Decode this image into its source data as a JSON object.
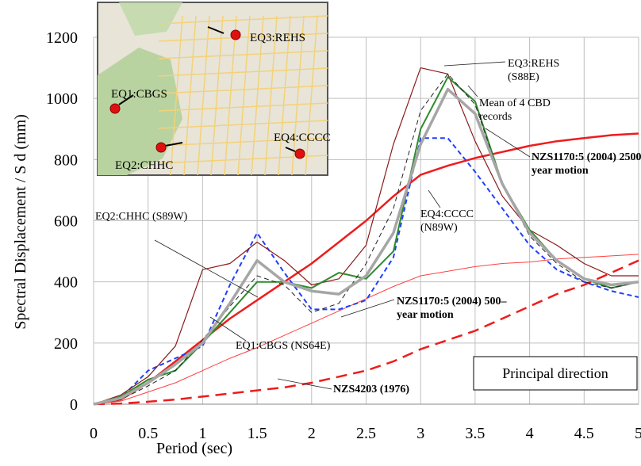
{
  "chart_data": {
    "type": "line",
    "xlabel": "Period (sec)",
    "ylabel": "Spectral Displacement / S d (mm)",
    "x": [
      0,
      0.25,
      0.5,
      0.75,
      1,
      1.25,
      1.5,
      1.75,
      2,
      2.25,
      2.5,
      2.75,
      3,
      3.25,
      3.5,
      3.75,
      4,
      4.25,
      4.5,
      4.75,
      5
    ],
    "xlim": [
      0,
      5
    ],
    "xticks": [
      0,
      0.5,
      1,
      1.5,
      2,
      2.5,
      3,
      3.5,
      4,
      4.5,
      5
    ],
    "ylim": [
      0,
      1200
    ],
    "yticks": [
      0,
      200,
      400,
      600,
      800,
      1000,
      1200
    ],
    "grid": true,
    "series": [
      {
        "name": "NZS4203 (1976)",
        "color": "#ee1c1c",
        "width": 2.5,
        "dash": true,
        "values": [
          0,
          2,
          8,
          15,
          25,
          35,
          45,
          55,
          70,
          90,
          110,
          140,
          180,
          210,
          240,
          280,
          320,
          360,
          390,
          430,
          470
        ]
      },
      {
        "name": "NZS1170:5 (2004) 500–year motion",
        "color": "#ff4040",
        "width": 1,
        "dash": false,
        "values": [
          0,
          10,
          40,
          70,
          110,
          150,
          185,
          225,
          265,
          305,
          345,
          385,
          420,
          435,
          450,
          460,
          465,
          475,
          480,
          485,
          490
        ]
      },
      {
        "name": "NZS1170:5 (2004) 2500 year motion",
        "color": "#ee1c1c",
        "width": 2.5,
        "dash": false,
        "values": [
          0,
          15,
          70,
          140,
          210,
          280,
          340,
          400,
          460,
          530,
          600,
          680,
          750,
          780,
          805,
          825,
          845,
          860,
          870,
          880,
          885
        ]
      },
      {
        "name": "EQ4:CCCC (N89W)",
        "color": "#1f3fff",
        "width": 2,
        "dash": true,
        "values": [
          0,
          20,
          110,
          150,
          190,
          390,
          560,
          430,
          310,
          310,
          340,
          480,
          870,
          870,
          760,
          640,
          520,
          440,
          400,
          370,
          350
        ]
      },
      {
        "name": "EQ3:REHS (S88E)",
        "color": "#8b1a1a",
        "width": 1.2,
        "dash": false,
        "values": [
          0,
          30,
          90,
          190,
          440,
          460,
          530,
          470,
          390,
          410,
          520,
          850,
          1100,
          1080,
          860,
          680,
          570,
          520,
          460,
          420,
          420
        ]
      },
      {
        "name": "EQ2:CHHC (S89W)",
        "color": "#2e8b2e",
        "width": 2,
        "dash": false,
        "values": [
          0,
          25,
          80,
          110,
          200,
          300,
          400,
          400,
          380,
          430,
          410,
          500,
          900,
          1070,
          990,
          720,
          570,
          470,
          410,
          380,
          400
        ]
      },
      {
        "name": "EQ1:CBGS (NS64E)",
        "color": "#222222",
        "width": 1,
        "dash": true,
        "values": [
          0,
          15,
          60,
          110,
          210,
          320,
          420,
          390,
          300,
          330,
          460,
          640,
          960,
          1080,
          980,
          720,
          550,
          460,
          400,
          380,
          400
        ]
      },
      {
        "name": "Mean of 4 CBD records",
        "color": "#a6a6a6",
        "width": 3.5,
        "dash": false,
        "values": [
          0,
          20,
          70,
          130,
          200,
          330,
          470,
          400,
          370,
          360,
          420,
          560,
          850,
          1030,
          950,
          720,
          560,
          470,
          410,
          390,
          400
        ]
      }
    ],
    "box_label": "Principal direction",
    "inset_labels": [
      "EQ3:REHS",
      "EQ1:CBGS",
      "EQ2:CHHC",
      "EQ4:CCCC"
    ]
  }
}
